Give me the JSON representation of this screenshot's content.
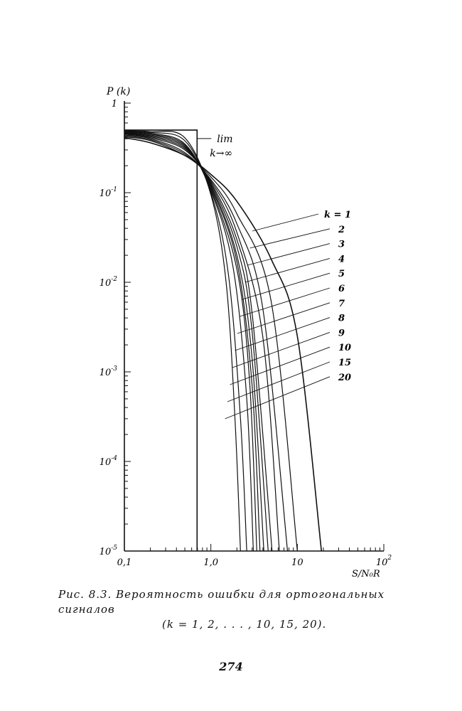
{
  "chart_data": {
    "type": "line",
    "xscale": "log",
    "yscale": "log",
    "xlim": [
      0.1,
      100
    ],
    "ylim": [
      1e-05,
      1
    ],
    "ylabel": "P (k)",
    "xlabel": "S/N₀R",
    "x_ticks": [
      {
        "value": 0.1,
        "label": "0,1"
      },
      {
        "value": 1,
        "label": "1,0"
      },
      {
        "value": 10,
        "label": "10"
      },
      {
        "value": 100,
        "label": "10",
        "sup": "2"
      }
    ],
    "y_ticks": [
      {
        "value": 1,
        "label": "1",
        "sup": ""
      },
      {
        "value": 0.1,
        "label": "10",
        "sup": "-1"
      },
      {
        "value": 0.01,
        "label": "10",
        "sup": "-2"
      },
      {
        "value": 0.001,
        "label": "10",
        "sup": "-3"
      },
      {
        "value": 0.0001,
        "label": "10",
        "sup": "-4"
      },
      {
        "value": 1e-05,
        "label": "10",
        "sup": "-5"
      }
    ],
    "limit_curve": {
      "label_line1": "lim",
      "label_line2": "k→∞",
      "threshold_x": 0.693,
      "level": 0.5
    },
    "series": [
      {
        "name": "k = 1",
        "x": [
          0.1,
          0.2,
          0.5,
          1,
          2,
          5,
          10,
          19
        ],
        "y": [
          0.41,
          0.36,
          0.26,
          0.16,
          0.08,
          0.018,
          0.0025,
          1e-05
        ]
      },
      {
        "name": "2",
        "x": [
          0.1,
          0.2,
          0.5,
          1,
          2,
          5,
          10
        ],
        "y": [
          0.42,
          0.38,
          0.26,
          0.15,
          0.058,
          0.006,
          1e-05
        ]
      },
      {
        "name": "3",
        "x": [
          0.1,
          0.2,
          0.5,
          1,
          2,
          4,
          7.7
        ],
        "y": [
          0.43,
          0.39,
          0.27,
          0.14,
          0.045,
          0.005,
          1e-05
        ]
      },
      {
        "name": "4",
        "x": [
          0.1,
          0.2,
          0.5,
          1,
          2,
          4,
          6.2
        ],
        "y": [
          0.44,
          0.4,
          0.28,
          0.135,
          0.036,
          0.0024,
          1e-05
        ]
      },
      {
        "name": "5",
        "x": [
          0.1,
          0.2,
          0.5,
          1,
          2,
          3,
          5.1
        ],
        "y": [
          0.45,
          0.41,
          0.3,
          0.13,
          0.03,
          0.0045,
          1e-05
        ]
      },
      {
        "name": "6",
        "x": [
          0.1,
          0.2,
          0.5,
          1,
          2,
          3,
          4.6
        ],
        "y": [
          0.455,
          0.42,
          0.31,
          0.125,
          0.025,
          0.0028,
          1e-05
        ]
      },
      {
        "name": "7",
        "x": [
          0.1,
          0.2,
          0.5,
          1,
          2,
          3,
          4.1
        ],
        "y": [
          0.46,
          0.43,
          0.32,
          0.12,
          0.02,
          0.0014,
          1e-05
        ]
      },
      {
        "name": "8",
        "x": [
          0.1,
          0.2,
          0.5,
          1,
          2,
          3,
          3.7
        ],
        "y": [
          0.465,
          0.44,
          0.33,
          0.115,
          0.017,
          0.0007,
          1e-05
        ]
      },
      {
        "name": "9",
        "x": [
          0.1,
          0.2,
          0.5,
          1,
          2,
          2.8,
          3.4
        ],
        "y": [
          0.47,
          0.45,
          0.34,
          0.11,
          0.014,
          0.0008,
          1e-05
        ]
      },
      {
        "name": "10",
        "x": [
          0.1,
          0.2,
          0.5,
          1,
          1.8,
          2.6,
          3.1
        ],
        "y": [
          0.475,
          0.46,
          0.35,
          0.105,
          0.015,
          0.0005,
          1e-05
        ]
      },
      {
        "name": "15",
        "x": [
          0.1,
          0.2,
          0.5,
          1,
          1.6,
          2.2,
          2.6
        ],
        "y": [
          0.48,
          0.47,
          0.38,
          0.1,
          0.012,
          0.0003,
          1e-05
        ]
      },
      {
        "name": "20",
        "x": [
          0.1,
          0.2,
          0.5,
          1,
          1.5,
          1.9,
          2.2
        ],
        "y": [
          0.49,
          0.48,
          0.41,
          0.095,
          0.01,
          0.0003,
          1e-05
        ]
      }
    ],
    "grid": false,
    "legend": "right, labels with leader lines"
  },
  "caption": {
    "line1": "Рис.  8.3.  Вероятность  ошибки  для  ортогональных  сигналов",
    "line2": "(k = 1,  2,  . . . ,  10,  15,  20)."
  },
  "page_number": "274"
}
